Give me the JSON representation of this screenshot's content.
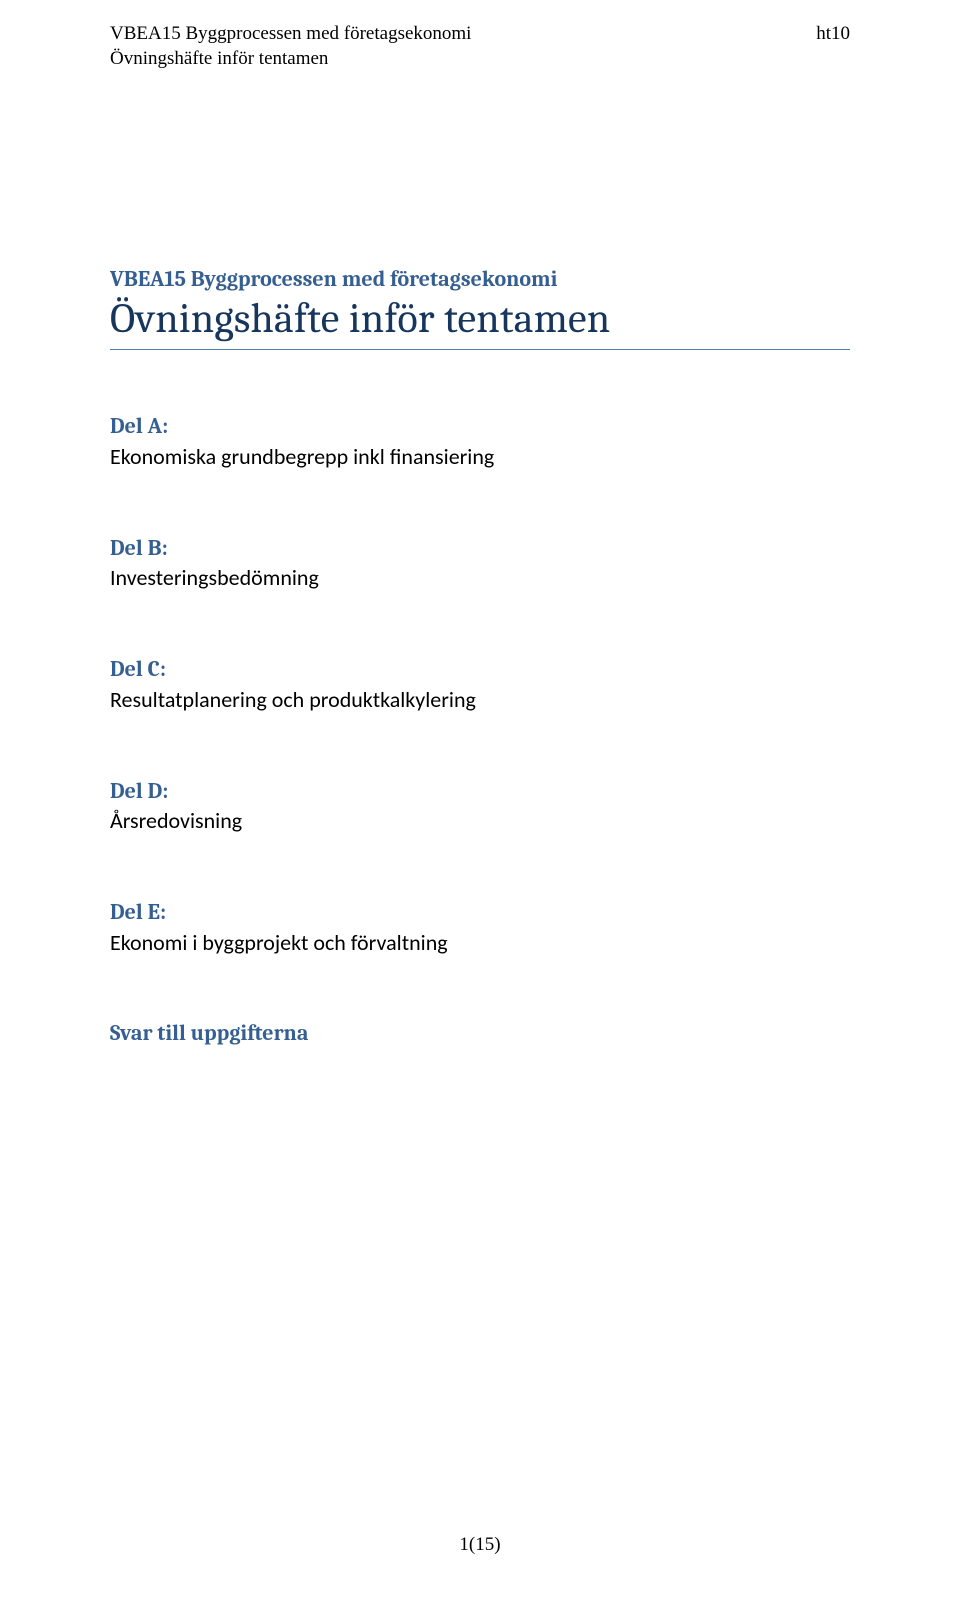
{
  "header": {
    "line1": "VBEA15 Byggprocessen med företagsekonomi",
    "line2": "Övningshäfte inför tentamen",
    "right": "ht10"
  },
  "course_title": "VBEA15 Byggprocessen med företagsekonomi",
  "main_title": "Övningshäfte inför tentamen",
  "sections": [
    {
      "label": "Del A:",
      "body": "Ekonomiska grundbegrepp inkl finansiering"
    },
    {
      "label": "Del B:",
      "body": "Investeringsbedömning"
    },
    {
      "label": "Del C:",
      "body": "Resultatplanering och produktkalkylering"
    },
    {
      "label": "Del D:",
      "body": "Årsredovisning"
    },
    {
      "label": "Del E:",
      "body": "Ekonomi i byggprojekt och förvaltning"
    },
    {
      "label": "Svar till uppgifterna",
      "body": ""
    }
  ],
  "footer": "1(15)",
  "colors": {
    "heading_blue": "#365f91",
    "title_dark_blue": "#17365d",
    "rule_blue": "#4f81bd",
    "text": "#000000",
    "background": "#ffffff"
  },
  "typography": {
    "header_fontsize": 19,
    "course_title_fontsize": 22,
    "main_title_fontsize": 42,
    "section_fontsize": 22,
    "footer_fontsize": 19
  }
}
